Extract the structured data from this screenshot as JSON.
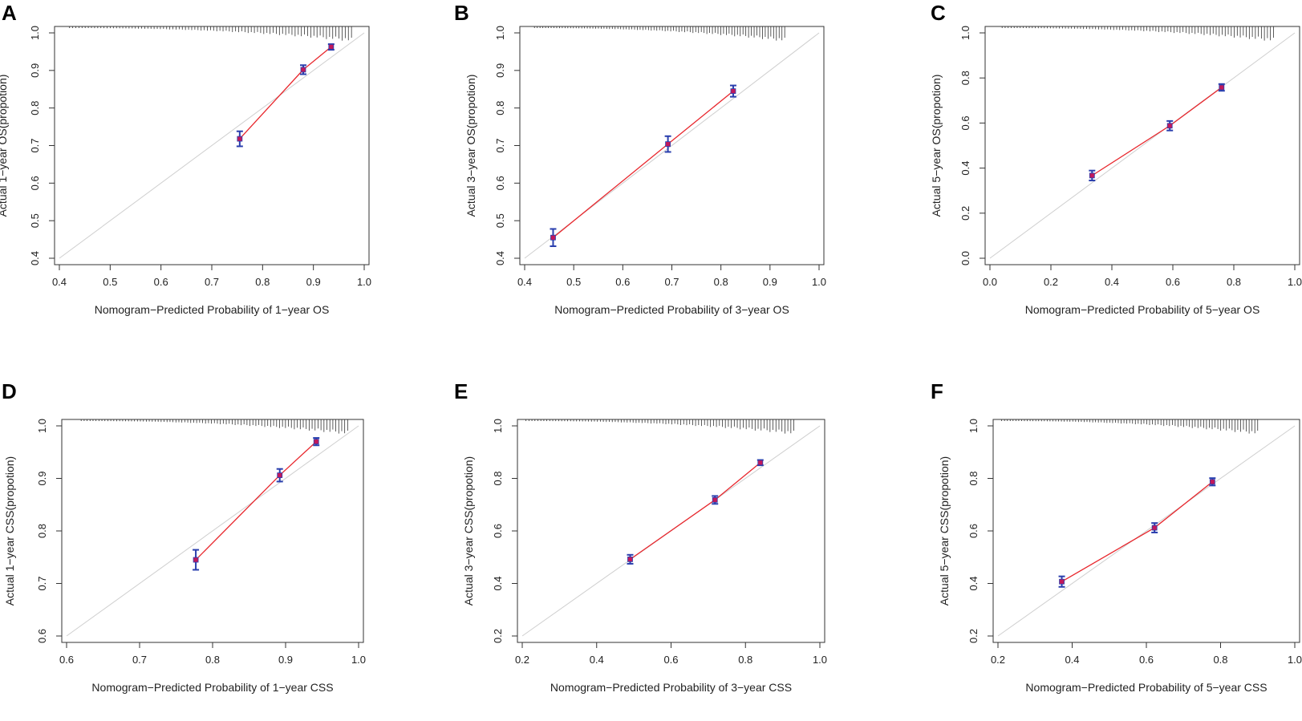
{
  "figure": {
    "colors": {
      "calibration_line": "#e8262c",
      "point": "#c2185b",
      "error_bar": "#2a3fae",
      "ideal_line": "#cfcfcf",
      "axis": "#333333",
      "rug": "#333333"
    },
    "panels": [
      {
        "letter": "A",
        "chart_data": {
          "type": "scatter",
          "title": "",
          "xlabel": "Nomogram−Predicted Probability of 1−year OS",
          "ylabel": "Actual 1−year OS(propotion)",
          "xlim": [
            0.4,
            1.0
          ],
          "ylim": [
            0.4,
            1.0
          ],
          "xticks": [
            "0.4",
            "0.5",
            "0.6",
            "0.7",
            "0.8",
            "0.9",
            "1.0"
          ],
          "yticks": [
            "0.4",
            "0.5",
            "0.6",
            "0.7",
            "0.8",
            "0.9",
            "1.0"
          ],
          "points": [
            {
              "x": 0.755,
              "y": 0.718,
              "lo": 0.698,
              "hi": 0.738
            },
            {
              "x": 0.88,
              "y": 0.902,
              "lo": 0.89,
              "hi": 0.914
            },
            {
              "x": 0.935,
              "y": 0.963,
              "lo": 0.955,
              "hi": 0.97
            }
          ],
          "rug": {
            "from": 0.42,
            "to": 0.975
          }
        }
      },
      {
        "letter": "B",
        "chart_data": {
          "type": "scatter",
          "title": "",
          "xlabel": "Nomogram−Predicted Probability of 3−year OS",
          "ylabel": "Actual 3−year OS(propotion)",
          "xlim": [
            0.4,
            1.0
          ],
          "ylim": [
            0.4,
            1.0
          ],
          "xticks": [
            "0.4",
            "0.5",
            "0.6",
            "0.7",
            "0.8",
            "0.9",
            "1.0"
          ],
          "yticks": [
            "0.4",
            "0.5",
            "0.6",
            "0.7",
            "0.8",
            "0.9",
            "1.0"
          ],
          "points": [
            {
              "x": 0.458,
              "y": 0.455,
              "lo": 0.432,
              "hi": 0.478
            },
            {
              "x": 0.692,
              "y": 0.704,
              "lo": 0.683,
              "hi": 0.725
            },
            {
              "x": 0.825,
              "y": 0.845,
              "lo": 0.83,
              "hi": 0.86
            }
          ],
          "rug": {
            "from": 0.42,
            "to": 0.93
          }
        }
      },
      {
        "letter": "C",
        "chart_data": {
          "type": "scatter",
          "title": "",
          "xlabel": "Nomogram−Predicted Probability of 5−year OS",
          "ylabel": "Actual 5−year OS(propotion)",
          "xlim": [
            0.0,
            1.0
          ],
          "ylim": [
            0.0,
            1.0
          ],
          "xticks": [
            "0.0",
            "0.2",
            "0.4",
            "0.6",
            "0.8",
            "1.0"
          ],
          "yticks": [
            "0.0",
            "0.2",
            "0.4",
            "0.6",
            "0.8",
            "1.0"
          ],
          "points": [
            {
              "x": 0.335,
              "y": 0.367,
              "lo": 0.345,
              "hi": 0.389
            },
            {
              "x": 0.59,
              "y": 0.588,
              "lo": 0.567,
              "hi": 0.609
            },
            {
              "x": 0.76,
              "y": 0.758,
              "lo": 0.743,
              "hi": 0.773
            }
          ],
          "rug": {
            "from": 0.04,
            "to": 0.93
          }
        }
      },
      {
        "letter": "D",
        "chart_data": {
          "type": "scatter",
          "title": "",
          "xlabel": "Nomogram−Predicted Probability of 1−year CSS",
          "ylabel": "Actual 1−year CSS(propotion)",
          "xlim": [
            0.6,
            1.0
          ],
          "ylim": [
            0.6,
            1.0
          ],
          "xticks": [
            "0.6",
            "0.7",
            "0.8",
            "0.9",
            "1.0"
          ],
          "yticks": [
            "0.6",
            "0.7",
            "0.8",
            "0.9",
            "1.0"
          ],
          "points": [
            {
              "x": 0.777,
              "y": 0.745,
              "lo": 0.726,
              "hi": 0.764
            },
            {
              "x": 0.892,
              "y": 0.906,
              "lo": 0.894,
              "hi": 0.918
            },
            {
              "x": 0.942,
              "y": 0.97,
              "lo": 0.963,
              "hi": 0.977
            }
          ],
          "rug": {
            "from": 0.62,
            "to": 0.985
          }
        }
      },
      {
        "letter": "E",
        "chart_data": {
          "type": "scatter",
          "title": "",
          "xlabel": "Nomogram−Predicted Probability of 3−year CSS",
          "ylabel": "Actual 3−year CSS(propotion)",
          "xlim": [
            0.2,
            1.0
          ],
          "ylim": [
            0.2,
            1.0
          ],
          "xticks": [
            "0.2",
            "0.4",
            "0.6",
            "0.8",
            "1.0"
          ],
          "yticks": [
            "0.2",
            "0.4",
            "0.6",
            "0.8",
            "1.0"
          ],
          "points": [
            {
              "x": 0.49,
              "y": 0.492,
              "lo": 0.475,
              "hi": 0.509
            },
            {
              "x": 0.718,
              "y": 0.718,
              "lo": 0.703,
              "hi": 0.733
            },
            {
              "x": 0.84,
              "y": 0.86,
              "lo": 0.85,
              "hi": 0.87
            }
          ],
          "rug": {
            "from": 0.21,
            "to": 0.93
          }
        }
      },
      {
        "letter": "F",
        "chart_data": {
          "type": "scatter",
          "title": "",
          "xlabel": "Nomogram−Predicted Probability of 5−year CSS",
          "ylabel": "Actual 5−year CSS(propotion)",
          "xlim": [
            0.2,
            1.0
          ],
          "ylim": [
            0.2,
            1.0
          ],
          "xticks": [
            "0.2",
            "0.4",
            "0.6",
            "0.8",
            "1.0"
          ],
          "yticks": [
            "0.2",
            "0.4",
            "0.6",
            "0.8",
            "1.0"
          ],
          "points": [
            {
              "x": 0.372,
              "y": 0.407,
              "lo": 0.387,
              "hi": 0.427
            },
            {
              "x": 0.622,
              "y": 0.612,
              "lo": 0.594,
              "hi": 0.63
            },
            {
              "x": 0.778,
              "y": 0.787,
              "lo": 0.773,
              "hi": 0.801
            }
          ],
          "rug": {
            "from": 0.21,
            "to": 0.9
          }
        }
      }
    ]
  }
}
